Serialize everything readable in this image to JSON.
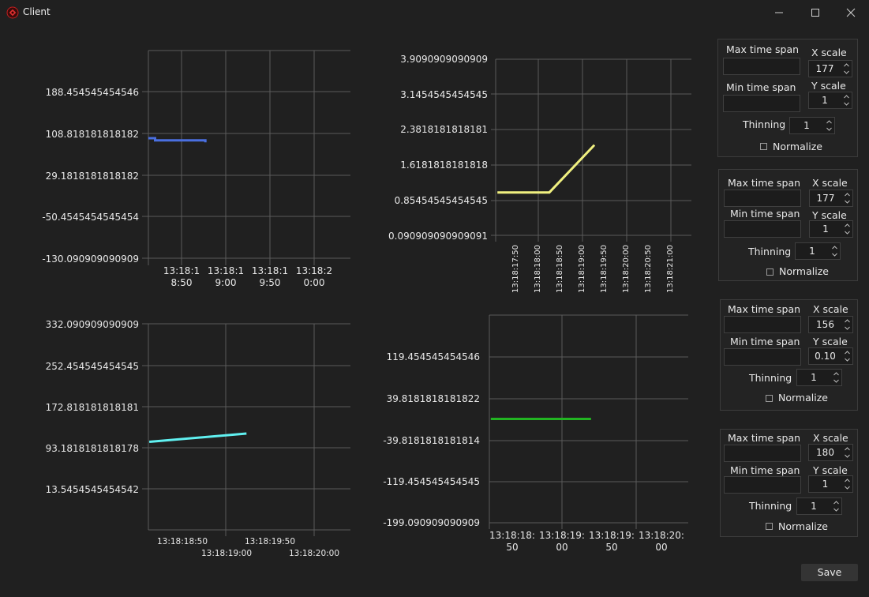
{
  "window": {
    "title": "Client"
  },
  "charts": [
    {
      "y_ticks": [
        "188.454545454546",
        "108.818181818182",
        "29.1818181818182",
        "-50.4545454545454",
        "-130.090909090909"
      ],
      "x_ticks": [
        [
          "13:18:1",
          "8:50"
        ],
        [
          "13:18:1",
          "9:00"
        ],
        [
          "13:18:1",
          "9:50"
        ],
        [
          "13:18:2",
          "0:00"
        ]
      ],
      "color": "#4a6fe0",
      "points": [
        [
          0,
          100
        ],
        [
          0.4,
          100
        ],
        [
          0.4,
          96
        ],
        [
          3.4,
          96
        ],
        [
          3.4,
          92
        ]
      ],
      "x_range": [
        0,
        12.05
      ],
      "y_range": [
        -130.09,
        268.09
      ]
    },
    {
      "y_ticks": [
        "3.9090909090909",
        "3.1454545454545",
        "2.3818181818181",
        "1.6181818181818",
        "0.85454545454545",
        "0.090909090909091"
      ],
      "x_ticks": [
        "13:18:17:50",
        "13:18:18:00",
        "13:18:18:50",
        "13:18:19:00",
        "13:18:19:50",
        "13:18:20:00",
        "13:18:20:50",
        "13:18:21:00"
      ],
      "color": "#f0f080",
      "points": [
        [
          0,
          1.02
        ],
        [
          1.2,
          1.02
        ],
        [
          2.24,
          2.05
        ]
      ],
      "x_range": [
        -0.04,
        4.48
      ],
      "y_range": [
        0.0909,
        3.909
      ]
    },
    {
      "y_ticks": [
        "332.090909090909",
        "252.454545454545",
        "172.818181818181",
        "93.1818181818178",
        "13.5454545454542"
      ],
      "x_ticks": [
        [
          "13:18:18:50",
          ""
        ],
        [
          "",
          "13:18:19:00"
        ],
        [
          "13:18:19:50",
          ""
        ],
        [
          "",
          "13:18:20:00"
        ]
      ],
      "color": "#60f0f0",
      "points": [
        [
          0,
          104
        ],
        [
          2.3,
          120
        ]
      ],
      "x_range": [
        -0.02,
        4.76
      ],
      "y_range": [
        -66.09,
        332.09
      ]
    },
    {
      "y_ticks": [
        "119.454545454546",
        "39.8181818181822",
        "-39.8181818181814",
        "-119.454545454545",
        "-199.090909090909"
      ],
      "x_ticks": [
        [
          "13:18:18:",
          "50"
        ],
        [
          "13:18:19:",
          "00"
        ],
        [
          "13:18:19:",
          "50"
        ],
        [
          "13:18:20:",
          "00"
        ]
      ],
      "color": "#22b422",
      "points": [
        [
          0,
          0
        ],
        [
          1.38,
          0
        ]
      ],
      "x_range": [
        -0.02,
        2.72
      ],
      "y_range": [
        -199.09,
        199.09
      ]
    }
  ],
  "panels": [
    {
      "max_time_span_label": "Max time span",
      "min_time_span_label": "Min time span",
      "x_scale_label": "X scale",
      "x_scale_value": "177",
      "y_scale_label": "Y scale",
      "y_scale_value": "1",
      "thinning_label": "Thinning",
      "thinning_value": "1",
      "normalize_label": "Normalize"
    },
    {
      "max_time_span_label": "Max time span",
      "min_time_span_label": "Min time span",
      "x_scale_label": "X scale",
      "x_scale_value": "177",
      "y_scale_label": "Y scale",
      "y_scale_value": "1",
      "thinning_label": "Thinning",
      "thinning_value": "1",
      "normalize_label": "Normalize"
    },
    {
      "max_time_span_label": "Max time span",
      "min_time_span_label": "Min time span",
      "x_scale_label": "X scale",
      "x_scale_value": "156",
      "y_scale_label": "Y scale",
      "y_scale_value": "0.10",
      "thinning_label": "Thinning",
      "thinning_value": "1",
      "normalize_label": "Normalize"
    },
    {
      "max_time_span_label": "Max time span",
      "min_time_span_label": "Min time span",
      "x_scale_label": "X scale",
      "x_scale_value": "180",
      "y_scale_label": "Y scale",
      "y_scale_value": "1",
      "thinning_label": "Thinning",
      "thinning_value": "1",
      "normalize_label": "Normalize"
    }
  ],
  "save_label": "Save"
}
